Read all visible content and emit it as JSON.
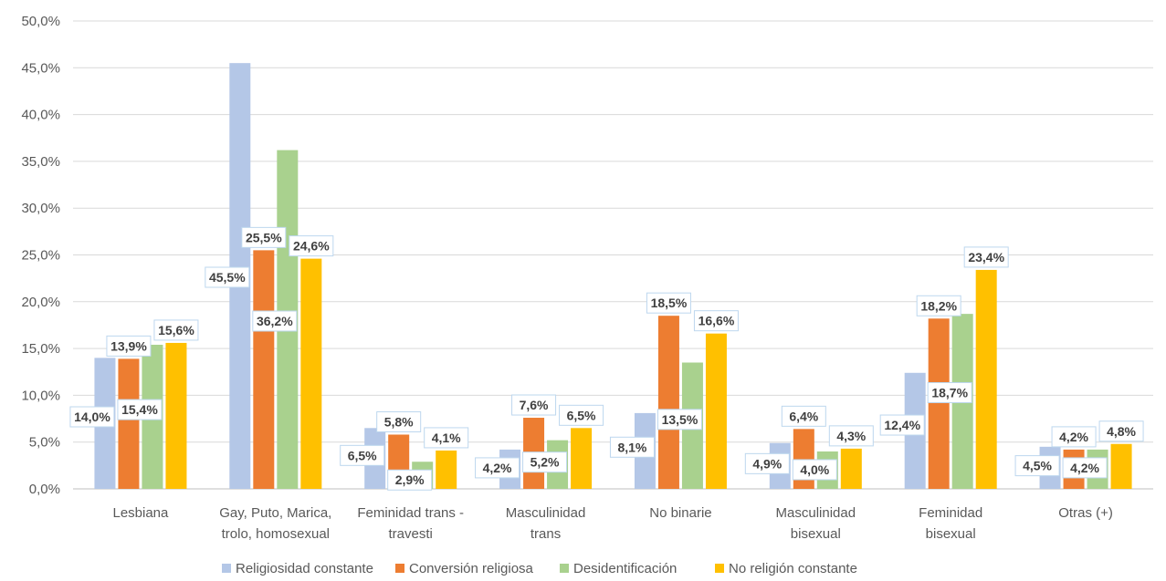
{
  "chart_data": {
    "type": "bar",
    "title": "",
    "xlabel": "",
    "ylabel": "",
    "ylim": [
      0,
      50
    ],
    "y_ticks": [
      "0,0%",
      "5,0%",
      "10,0%",
      "15,0%",
      "20,0%",
      "25,0%",
      "30,0%",
      "35,0%",
      "40,0%",
      "45,0%",
      "50,0%"
    ],
    "grid": true,
    "legend_position": "bottom",
    "categories": [
      [
        "Lesbiana"
      ],
      [
        "Gay, Puto, Marica,",
        "trolo, homosexual"
      ],
      [
        "Feminidad trans -",
        "travesti"
      ],
      [
        "Masculinidad",
        "trans"
      ],
      [
        "No binarie"
      ],
      [
        "Masculinidad",
        "bisexual"
      ],
      [
        "Feminidad",
        "bisexual"
      ],
      [
        "Otras (+)"
      ]
    ],
    "series": [
      {
        "name": "Religiosidad constante",
        "color": "#b4c7e7",
        "values": [
          14.0,
          45.5,
          6.5,
          4.2,
          8.1,
          4.9,
          12.4,
          4.5
        ],
        "labels": [
          "14,0%",
          "45,5%",
          "6,5%",
          "4,2%",
          "8,1%",
          "4,9%",
          "12,4%",
          "4,5%"
        ]
      },
      {
        "name": "Conversión religiosa",
        "color": "#ed7d31",
        "values": [
          13.9,
          25.5,
          5.8,
          7.6,
          18.5,
          6.4,
          18.2,
          4.2
        ],
        "labels": [
          "13,9%",
          "25,5%",
          "5,8%",
          "7,6%",
          "18,5%",
          "6,4%",
          "18,2%",
          "4,2%"
        ]
      },
      {
        "name": "Desidentificación",
        "color": "#a9d18e",
        "values": [
          15.4,
          36.2,
          2.9,
          5.2,
          13.5,
          4.0,
          18.7,
          4.2
        ],
        "labels": [
          "15,4%",
          "36,2%",
          "2,9%",
          "5,2%",
          "13,5%",
          "4,0%",
          "18,7%",
          "4,2%"
        ]
      },
      {
        "name": "No religión constante",
        "color": "#ffc000",
        "values": [
          15.6,
          24.6,
          4.1,
          6.5,
          16.6,
          4.3,
          23.4,
          4.8
        ],
        "labels": [
          "15,6%",
          "24,6%",
          "4,1%",
          "6,5%",
          "16,6%",
          "4,3%",
          "23,4%",
          "4,8%"
        ]
      }
    ]
  }
}
